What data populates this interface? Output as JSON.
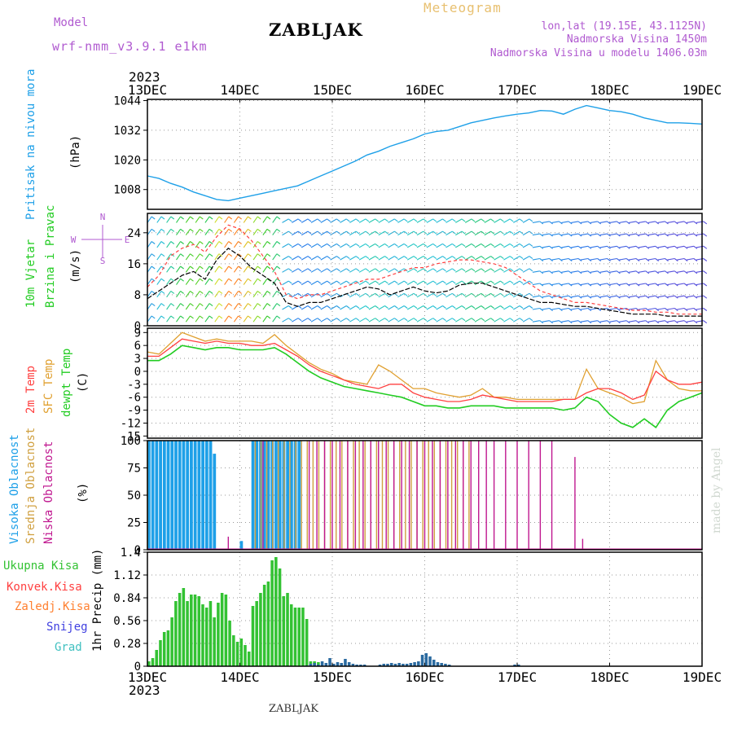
{
  "header": {
    "model_label": "Model",
    "model_name": "wrf-nmm_v3.9.1 e1km",
    "station_title": "ZABLJAK",
    "chart_title": "Meteogram",
    "coords": "lon,lat (19.15E, 43.1125N)",
    "elevation": "Nadmorska Visina 1450m",
    "model_elevation": "Nadmorska Visina u modelu 1406.03m"
  },
  "footer": {
    "station": "ZABLJAK",
    "credit": "made by Angel"
  },
  "colors": {
    "pressure": "#1ea0e8",
    "wind_label": "#22cc22",
    "temp2m": "#ff4040",
    "sfc_temp": "#e0a030",
    "dewpt": "#22cc22",
    "cloud_high": "#1ea0e8",
    "cloud_mid": "#d0a040",
    "cloud_low": "#c01890",
    "precip_total": "#33c233",
    "precip_conv": "#ff4040",
    "precip_frozen": "#ff8030",
    "snow": "#4040e0",
    "graupel": "#40c0c0",
    "wind_mean": "#000000",
    "wind_gust": "#ff4040"
  },
  "chart_data": [
    {
      "type": "line",
      "panel": "pressure",
      "ylabel": [
        "Pritisak na nivou mora",
        "(hPa)"
      ],
      "yticks": [
        1008,
        1020,
        1032,
        1044
      ],
      "ylim": [
        1000,
        1044.5
      ],
      "x_dates": [
        "13DEC",
        "14DEC",
        "15DEC",
        "16DEC",
        "17DEC",
        "18DEC",
        "19DEC"
      ],
      "x_year": "2023",
      "xlim": [
        0,
        144
      ],
      "series": [
        {
          "x": [
            0,
            3,
            6,
            9,
            12,
            15,
            18,
            21,
            24,
            27,
            30,
            33,
            36,
            39,
            42,
            45,
            48,
            51,
            54,
            57,
            60,
            63,
            66,
            69,
            72,
            75,
            78,
            81,
            84,
            87,
            90,
            93,
            96,
            99,
            102,
            105,
            108,
            111,
            114,
            117,
            120,
            123,
            126,
            129,
            132,
            135,
            138,
            141,
            144
          ],
          "values": [
            1013.5,
            1012.5,
            1010.5,
            1009,
            1007,
            1005.5,
            1004,
            1003.5,
            1004.5,
            1005.5,
            1006.5,
            1007.5,
            1008.5,
            1009.5,
            1011.5,
            1013.5,
            1015.5,
            1017.5,
            1019.5,
            1022,
            1023.5,
            1025.5,
            1027,
            1028.5,
            1030.5,
            1031.5,
            1032,
            1033.5,
            1035,
            1036,
            1037,
            1037.8,
            1038.5,
            1039,
            1040,
            1039.8,
            1038.5,
            1040.5,
            1042,
            1041,
            1040,
            1039.5,
            1038.5,
            1037,
            1036,
            1035,
            1035,
            1034.8,
            1034.5
          ]
        }
      ]
    },
    {
      "type": "line",
      "panel": "wind",
      "ylabel": [
        "10m Vjetar",
        "Brzina i Pravac",
        "(m/s)"
      ],
      "compass": [
        "N",
        "E",
        "S",
        "W"
      ],
      "yticks": [
        0,
        8,
        16,
        24
      ],
      "ylim": [
        0,
        29
      ],
      "xlim": [
        0,
        144
      ],
      "series": [
        {
          "name": "speed",
          "x": [
            0,
            3,
            6,
            9,
            12,
            15,
            18,
            21,
            24,
            27,
            30,
            33,
            36,
            39,
            42,
            45,
            48,
            51,
            54,
            57,
            60,
            63,
            66,
            69,
            72,
            75,
            78,
            81,
            84,
            87,
            90,
            93,
            96,
            99,
            102,
            105,
            108,
            111,
            114,
            117,
            120,
            123,
            126,
            129,
            132,
            135,
            138,
            141,
            144
          ],
          "values": [
            7,
            9,
            11,
            13,
            14,
            12,
            17,
            20,
            18,
            15,
            13,
            11,
            6,
            5,
            6,
            6,
            7,
            8,
            9,
            10,
            9.5,
            8,
            9,
            10,
            9,
            8.5,
            9,
            10.5,
            11,
            11,
            10,
            9,
            8,
            7,
            6,
            6,
            5.5,
            5,
            5,
            4.5,
            4,
            3.5,
            3,
            3,
            3,
            2.5,
            2.5,
            2.5,
            2.5
          ]
        },
        {
          "name": "gust",
          "x": [
            0,
            3,
            6,
            9,
            12,
            15,
            18,
            21,
            24,
            27,
            30,
            33,
            36,
            39,
            42,
            45,
            48,
            51,
            54,
            57,
            60,
            63,
            66,
            69,
            72,
            75,
            78,
            81,
            84,
            87,
            90,
            93,
            96,
            99,
            102,
            105,
            108,
            111,
            114,
            117,
            120,
            123,
            126,
            129,
            132,
            135,
            138,
            141,
            144
          ],
          "values": [
            10,
            13,
            18,
            20,
            21,
            19,
            23,
            26,
            25,
            22,
            18,
            14,
            8,
            7,
            8,
            8,
            9,
            10,
            11,
            12,
            12,
            13,
            14,
            15,
            15,
            16,
            16.5,
            17,
            17,
            16.5,
            16,
            15,
            13,
            11,
            9,
            8,
            7,
            6,
            6,
            5.5,
            5,
            4.5,
            4,
            4,
            3.5,
            3.5,
            3,
            3,
            3
          ]
        }
      ]
    },
    {
      "type": "line",
      "panel": "temperature",
      "ylabel": [
        "2m Temp",
        "SFC Temp",
        "dewpt Temp",
        "(C)"
      ],
      "yticks": [
        -15,
        -12,
        -9,
        -6,
        -3,
        0,
        3,
        6,
        9
      ],
      "ylim": [
        -15.5,
        10
      ],
      "xlim": [
        0,
        144
      ],
      "series": [
        {
          "name": "2m Temp",
          "x": [
            0,
            3,
            6,
            9,
            12,
            15,
            18,
            21,
            24,
            27,
            30,
            33,
            36,
            39,
            42,
            45,
            48,
            51,
            54,
            57,
            60,
            63,
            66,
            69,
            72,
            75,
            78,
            81,
            84,
            87,
            90,
            93,
            96,
            99,
            102,
            105,
            108,
            111,
            114,
            117,
            120,
            123,
            126,
            129,
            132,
            135,
            138,
            141,
            144
          ],
          "values": [
            3.5,
            3.5,
            5.5,
            7.5,
            7,
            6.5,
            7,
            6.5,
            6.5,
            6,
            6,
            6.5,
            5,
            3.5,
            1.5,
            0,
            -1,
            -2,
            -3,
            -3.5,
            -4,
            -3,
            -3,
            -5,
            -6,
            -6.5,
            -7,
            -7,
            -6.5,
            -5.5,
            -6,
            -6.5,
            -7,
            -7,
            -7,
            -7,
            -6.5,
            -6.5,
            -5,
            -4,
            -4,
            -5,
            -6.5,
            -5.5,
            0,
            -2,
            -3,
            -3,
            -2.5
          ]
        },
        {
          "name": "SFC Temp",
          "x": [
            0,
            3,
            6,
            9,
            12,
            15,
            18,
            21,
            24,
            27,
            30,
            33,
            36,
            39,
            42,
            45,
            48,
            51,
            54,
            57,
            60,
            63,
            66,
            69,
            72,
            75,
            78,
            81,
            84,
            87,
            90,
            93,
            96,
            99,
            102,
            105,
            108,
            111,
            114,
            117,
            120,
            123,
            126,
            129,
            132,
            135,
            138,
            141,
            144
          ],
          "values": [
            4.5,
            4,
            6.5,
            9,
            8,
            7,
            7.5,
            7,
            7,
            7,
            6.5,
            8.5,
            6,
            4,
            2,
            0.5,
            -0.5,
            -2,
            -2.5,
            -3,
            1.5,
            0,
            -2,
            -4,
            -4,
            -5,
            -5.5,
            -6,
            -5.5,
            -4,
            -6,
            -6,
            -6.5,
            -6.5,
            -6.5,
            -6.5,
            -6.5,
            -6.5,
            0.5,
            -4,
            -5,
            -6,
            -7.5,
            -7,
            2.5,
            -2,
            -4,
            -4.5,
            -4.5
          ]
        },
        {
          "name": "dewpt Temp",
          "x": [
            0,
            3,
            6,
            9,
            12,
            15,
            18,
            21,
            24,
            27,
            30,
            33,
            36,
            39,
            42,
            45,
            48,
            51,
            54,
            57,
            60,
            63,
            66,
            69,
            72,
            75,
            78,
            81,
            84,
            87,
            90,
            93,
            96,
            99,
            102,
            105,
            108,
            111,
            114,
            117,
            120,
            123,
            126,
            129,
            132,
            135,
            138,
            141,
            144
          ],
          "values": [
            2.5,
            2.5,
            4,
            6,
            5.5,
            5,
            5.5,
            5.5,
            5,
            5,
            5,
            5.5,
            4,
            2,
            0,
            -1.5,
            -2.5,
            -3.5,
            -4,
            -4.5,
            -5,
            -5.5,
            -6,
            -7,
            -8,
            -8,
            -8.5,
            -8.5,
            -8,
            -8,
            -8,
            -8.5,
            -8.5,
            -8.5,
            -8.5,
            -8.5,
            -9,
            -8.5,
            -6,
            -7,
            -10,
            -12,
            -13,
            -11,
            -13,
            -9,
            -7,
            -6,
            -5
          ]
        }
      ]
    },
    {
      "type": "bar",
      "panel": "cloud",
      "ylabel": [
        "Visoka Oblacnost",
        "Srednja Oblacnost",
        "Niska Oblacnost",
        "(%)"
      ],
      "yticks": [
        0,
        25,
        50,
        75,
        100
      ],
      "ylim": [
        0,
        100
      ],
      "xlim": [
        0,
        144
      ],
      "series": [
        {
          "name": "Visoka Oblacnost",
          "ranges": [
            [
              0,
              4,
              100
            ],
            [
              4,
              17,
              100
            ],
            [
              17,
              18,
              88
            ],
            [
              24,
              25,
              8
            ],
            [
              27,
              40,
              100
            ]
          ]
        },
        {
          "name": "Srednja Oblacnost",
          "ranges": [
            [
              0,
              1,
              100
            ],
            [
              28,
              84,
              100
            ]
          ]
        },
        {
          "name": "Niska Oblacnost",
          "x": [
            21,
            30,
            42,
            44,
            46,
            48,
            50,
            52,
            54,
            56,
            58,
            60,
            62,
            64,
            66,
            68,
            70,
            72,
            74,
            76,
            78,
            80,
            82,
            84,
            86,
            88,
            90,
            93,
            96,
            99,
            102,
            105,
            111,
            113
          ],
          "values": [
            12,
            100,
            100,
            100,
            100,
            100,
            100,
            100,
            100,
            100,
            100,
            100,
            100,
            100,
            100,
            100,
            100,
            100,
            100,
            100,
            100,
            100,
            100,
            100,
            100,
            100,
            100,
            100,
            100,
            100,
            100,
            100,
            85,
            10
          ]
        }
      ]
    },
    {
      "type": "bar",
      "panel": "precip",
      "ylabel": [
        "1hr Precip (mm)"
      ],
      "legend": [
        "Ukupna Kisa",
        "Konvek.Kisa",
        "Zaledj.Kisa",
        "Snijeg",
        "Grad"
      ],
      "yticks": [
        0,
        0.28,
        0.56,
        0.84,
        1.12,
        1.4
      ],
      "ylim": [
        0,
        1.4
      ],
      "xlim": [
        0,
        144
      ],
      "x_dates": [
        "13DEC",
        "14DEC",
        "15DEC",
        "16DEC",
        "17DEC",
        "18DEC",
        "19DEC"
      ],
      "x_year": "2023",
      "series": [
        {
          "name": "Ukupna Kisa",
          "x": [
            0,
            1,
            2,
            3,
            4,
            5,
            6,
            7,
            8,
            9,
            10,
            11,
            12,
            13,
            14,
            15,
            16,
            17,
            18,
            19,
            20,
            21,
            22,
            23,
            24,
            25,
            26,
            27,
            28,
            29,
            30,
            31,
            32,
            33,
            34,
            35,
            36,
            37,
            38,
            39,
            40,
            41,
            42,
            43,
            44
          ],
          "values": [
            0.06,
            0.1,
            0.2,
            0.32,
            0.42,
            0.44,
            0.6,
            0.8,
            0.9,
            0.96,
            0.8,
            0.88,
            0.88,
            0.86,
            0.76,
            0.72,
            0.8,
            0.6,
            0.78,
            0.9,
            0.88,
            0.56,
            0.38,
            0.3,
            0.34,
            0.26,
            0.18,
            0.74,
            0.8,
            0.9,
            1.0,
            1.04,
            1.3,
            1.34,
            1.2,
            0.86,
            0.9,
            0.76,
            0.72,
            0.72,
            0.72,
            0.58,
            0.06,
            0.06,
            0.05
          ]
        },
        {
          "name": "Snijeg",
          "x": [
            41,
            42,
            43,
            44,
            45,
            46,
            47,
            48,
            49,
            50,
            51,
            52,
            53,
            54,
            55,
            56,
            60,
            61,
            62,
            63,
            64,
            65,
            66,
            67,
            68,
            69,
            70,
            71,
            72,
            73,
            74,
            75,
            76,
            77,
            78,
            95,
            96
          ],
          "values": [
            0.01,
            0.03,
            0.04,
            0.02,
            0.06,
            0.04,
            0.1,
            0.03,
            0.05,
            0.04,
            0.09,
            0.05,
            0.03,
            0.02,
            0.02,
            0.02,
            0.02,
            0.03,
            0.03,
            0.04,
            0.03,
            0.04,
            0.03,
            0.03,
            0.04,
            0.05,
            0.06,
            0.14,
            0.16,
            0.12,
            0.08,
            0.05,
            0.04,
            0.03,
            0.02,
            0.02,
            0.02
          ]
        }
      ]
    }
  ]
}
